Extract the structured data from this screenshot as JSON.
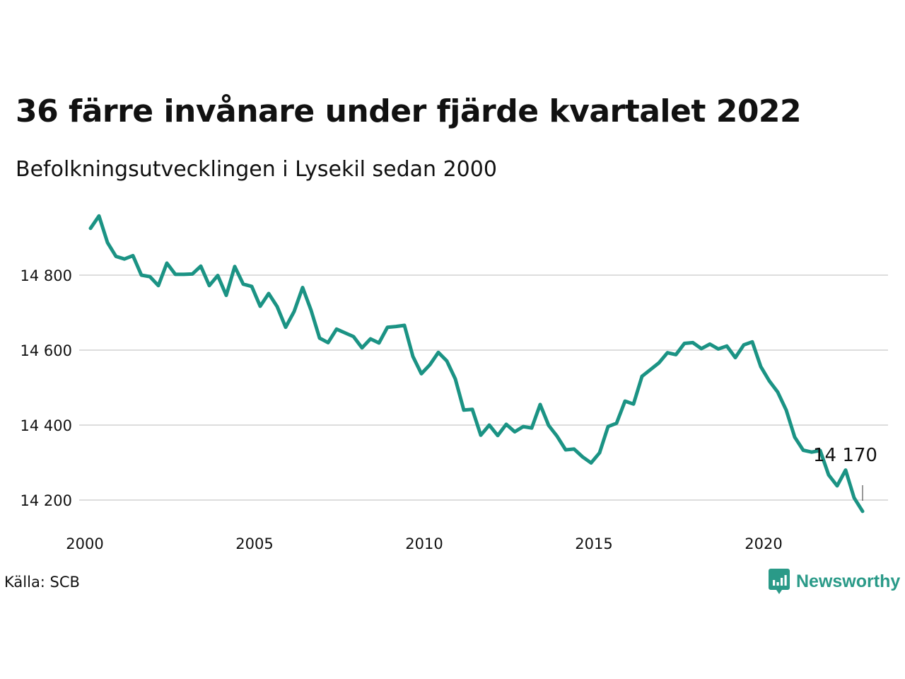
{
  "header": {
    "title": "36 färre invånare under fjärde kvartalet 2022",
    "subtitle": "Befolkningsutvecklingen i Lysekil sedan 2000"
  },
  "footer": {
    "source": "Källa: SCB",
    "brand": "Newsworthy"
  },
  "colors": {
    "line": "#1b9384",
    "grid": "#dddddd",
    "brand": "#2a9a88"
  },
  "icons": {
    "brand": "newsworthy-logo-icon"
  },
  "chart_data": {
    "type": "line",
    "xlabel": "",
    "ylabel": "",
    "x_ticks": [
      2000,
      2005,
      2010,
      2015,
      2020
    ],
    "x_tick_labels": [
      "2000",
      "2005",
      "2010",
      "2015",
      "2020"
    ],
    "y_ticks": [
      14200,
      14400,
      14600,
      14800
    ],
    "y_tick_labels": [
      "14 200",
      "14 400",
      "14 600",
      "14 800"
    ],
    "xlim": [
      2000,
      2023
    ],
    "ylim": [
      14140,
      14990
    ],
    "grid": true,
    "end_label": "14 170",
    "series": [
      {
        "x": [
          "2000 Q1",
          "2000 Q2",
          "2000 Q3",
          "2000 Q4",
          "2001 Q1",
          "2001 Q2",
          "2001 Q3",
          "2001 Q4",
          "2002 Q1",
          "2002 Q2",
          "2002 Q3",
          "2002 Q4",
          "2003 Q1",
          "2003 Q2",
          "2003 Q3",
          "2003 Q4",
          "2004 Q1",
          "2004 Q2",
          "2004 Q3",
          "2004 Q4",
          "2005 Q1",
          "2005 Q2",
          "2005 Q3",
          "2005 Q4",
          "2006 Q1",
          "2006 Q2",
          "2006 Q3",
          "2006 Q4",
          "2007 Q1",
          "2007 Q2",
          "2007 Q3",
          "2007 Q4",
          "2008 Q1",
          "2008 Q2",
          "2008 Q3",
          "2008 Q4",
          "2009 Q1",
          "2009 Q2",
          "2009 Q3",
          "2009 Q4",
          "2010 Q1",
          "2010 Q2",
          "2010 Q3",
          "2010 Q4",
          "2011 Q1",
          "2011 Q2",
          "2011 Q3",
          "2011 Q4",
          "2012 Q1",
          "2012 Q2",
          "2012 Q3",
          "2012 Q4",
          "2013 Q1",
          "2013 Q2",
          "2013 Q3",
          "2013 Q4",
          "2014 Q1",
          "2014 Q2",
          "2014 Q3",
          "2014 Q4",
          "2015 Q1",
          "2015 Q2",
          "2015 Q3",
          "2015 Q4",
          "2016 Q1",
          "2016 Q2",
          "2016 Q3",
          "2016 Q4",
          "2017 Q1",
          "2017 Q2",
          "2017 Q3",
          "2017 Q4",
          "2018 Q1",
          "2018 Q2",
          "2018 Q3",
          "2018 Q4",
          "2019 Q1",
          "2019 Q2",
          "2019 Q3",
          "2019 Q4",
          "2020 Q1",
          "2020 Q2",
          "2020 Q3",
          "2020 Q4",
          "2021 Q1",
          "2021 Q2",
          "2021 Q3",
          "2021 Q4",
          "2022 Q1",
          "2022 Q2",
          "2022 Q3",
          "2022 Q4"
        ],
        "values": [
          14925,
          14958,
          14887,
          14850,
          14843,
          14852,
          14800,
          14796,
          14772,
          14832,
          14802,
          14802,
          14803,
          14824,
          14772,
          14799,
          14746,
          14823,
          14776,
          14770,
          14717,
          14751,
          14716,
          14661,
          14703,
          14767,
          14706,
          14632,
          14620,
          14656,
          14646,
          14636,
          14606,
          14630,
          14619,
          14661,
          14663,
          14666,
          14583,
          14537,
          14561,
          14594,
          14571,
          14523,
          14440,
          14442,
          14373,
          14400,
          14372,
          14402,
          14382,
          14396,
          14392,
          14455,
          14399,
          14370,
          14334,
          14336,
          14315,
          14299,
          14326,
          14396,
          14405,
          14464,
          14456,
          14530,
          14548,
          14566,
          14593,
          14588,
          14618,
          14620,
          14604,
          14616,
          14603,
          14611,
          14580,
          14614,
          14622,
          14556,
          14518,
          14488,
          14440,
          14368,
          14333,
          14328,
          14332,
          14267,
          14238,
          14280,
          14206,
          14170
        ]
      }
    ]
  }
}
